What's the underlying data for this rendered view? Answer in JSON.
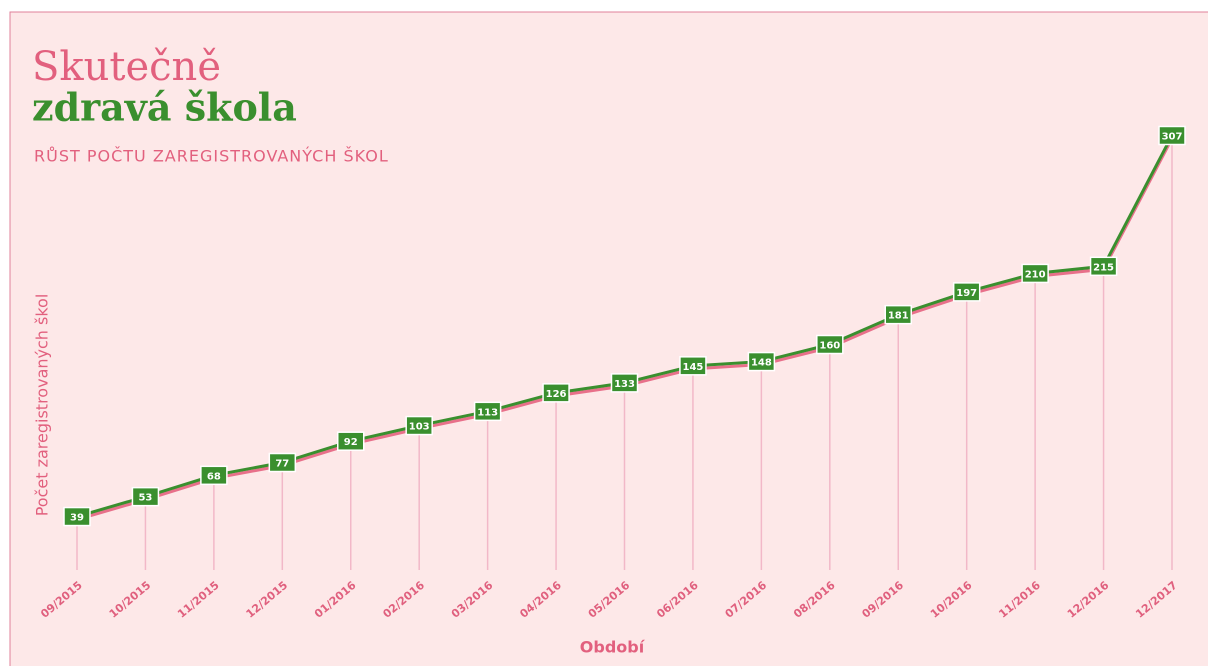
{
  "chart_data": {
    "type": "line",
    "title": "Skutečně",
    "title_line2": "zdravá škola",
    "subtitle": "RŮST POČTU ZAREGISTROVANÝCH ŠKOL",
    "y_label": "Počet  zaregistrovaných škol",
    "x_label": "Období",
    "categories": [
      "09/2015",
      "10/2015",
      "11/2015",
      "12/2015",
      "01/2016",
      "02/2016",
      "03/2016",
      "04/2016",
      "05/2016",
      "06/2016",
      "07/2016",
      "08/2016",
      "09/2016",
      "10/2016",
      "11/2016",
      "12/2016",
      "12/2017"
    ],
    "values": [
      39,
      53,
      68,
      77,
      92,
      103,
      113,
      126,
      133,
      145,
      148,
      160,
      181,
      197,
      210,
      215,
      307
    ],
    "color": "#3a8f2e",
    "ylim": [
      0,
      320
    ]
  }
}
